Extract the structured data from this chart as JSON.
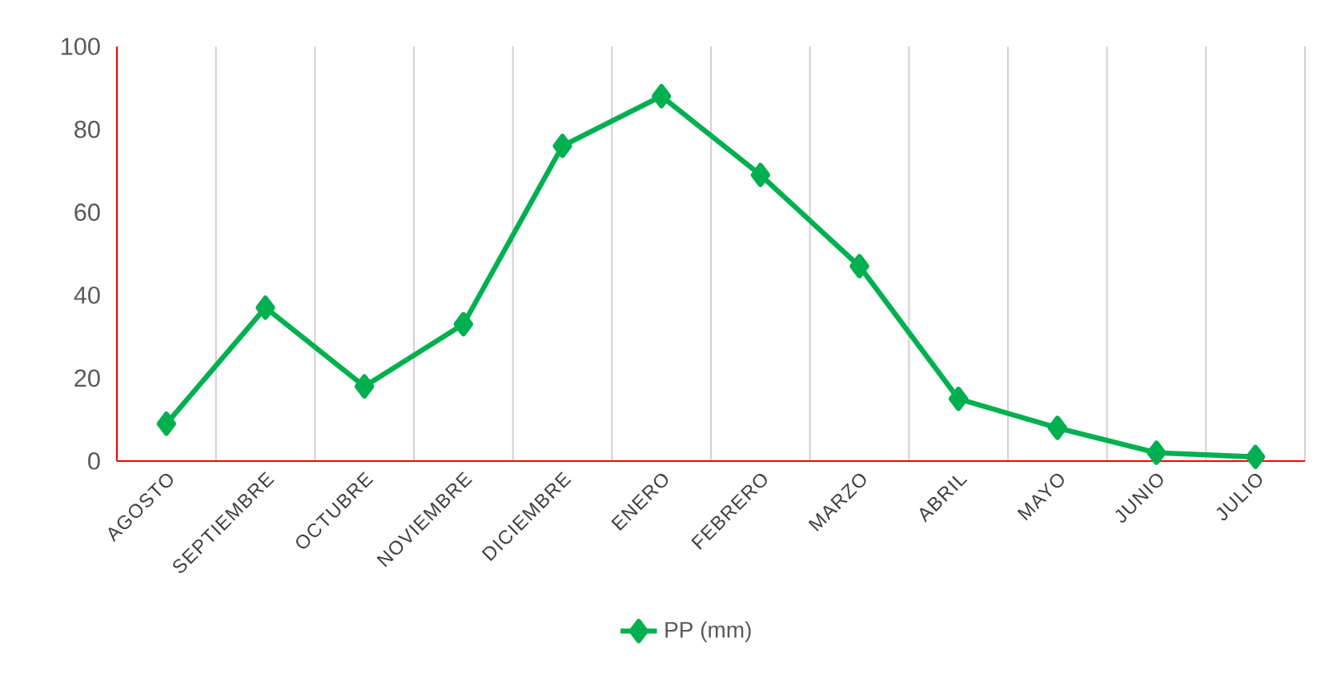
{
  "chart_data": {
    "type": "line",
    "categories": [
      "AGOSTO",
      "SEPTIEMBRE",
      "OCTUBRE",
      "NOVIEMBRE",
      "DICIEMBRE",
      "ENERO",
      "FEBRERO",
      "MARZO",
      "ABRIL",
      "MAYO",
      "JUNIO",
      "JULIO"
    ],
    "series": [
      {
        "name": "PP (mm)",
        "color": "#00b050",
        "values": [
          9,
          37,
          18,
          33,
          76,
          88,
          69,
          47,
          15,
          8,
          2,
          1
        ]
      }
    ],
    "ylim": [
      0,
      100
    ],
    "yticks": [
      0,
      20,
      40,
      60,
      80,
      100
    ],
    "grid": "x",
    "legend": "bottom",
    "marker": "diamond",
    "line_style": "solid"
  }
}
